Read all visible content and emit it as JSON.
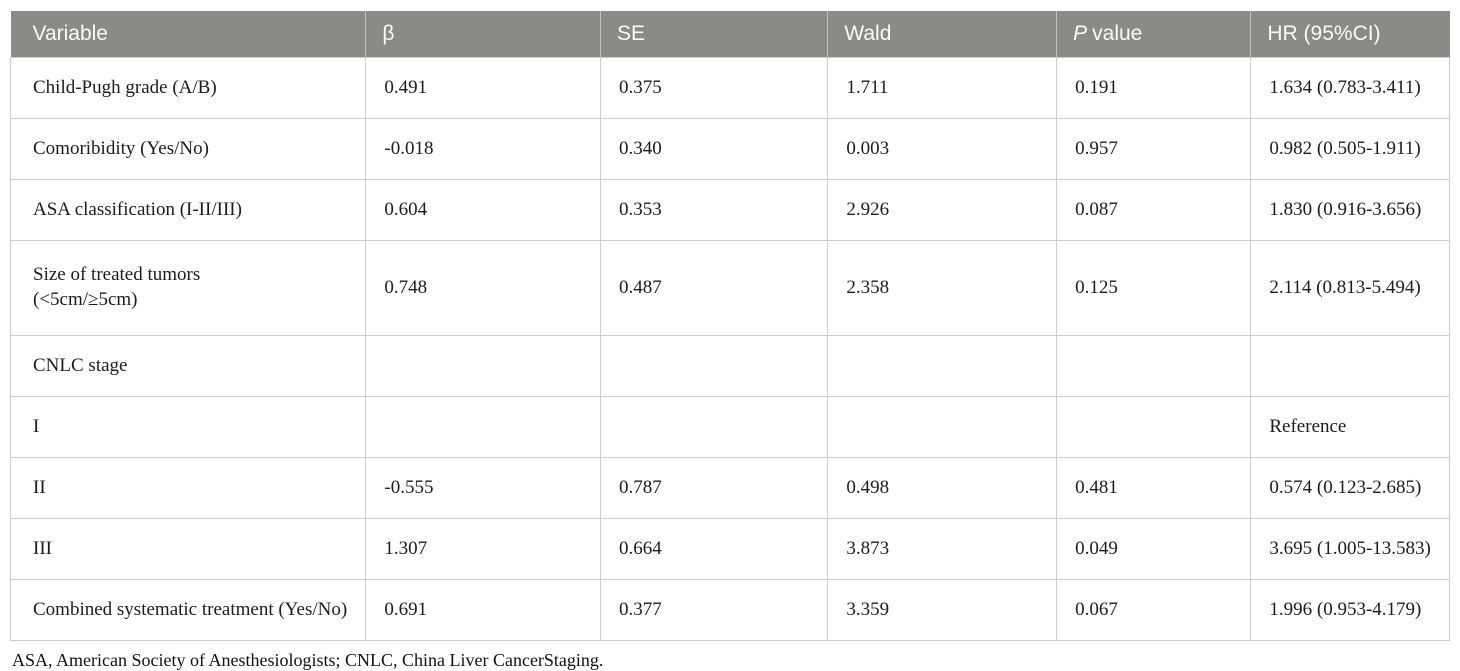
{
  "table": {
    "columns": {
      "variable": "Variable",
      "beta": "β",
      "se": "SE",
      "wald": "Wald",
      "p_italic": "P",
      "p_rest": "value",
      "hr": "HR (95%CI)"
    },
    "rows": [
      {
        "variable": "Child-Pugh grade (A/B)",
        "beta": "0.491",
        "se": "0.375",
        "wald": "1.711",
        "p": "0.191",
        "hr": "1.634 (0.783-3.411)"
      },
      {
        "variable": "Comoribidity (Yes/No)",
        "beta": "-0.018",
        "se": "0.340",
        "wald": "0.003",
        "p": "0.957",
        "hr": "0.982 (0.505-1.911)"
      },
      {
        "variable": "ASA classification (I-II/III)",
        "beta": "0.604",
        "se": "0.353",
        "wald": "2.926",
        "p": "0.087",
        "hr": "1.830 (0.916-3.656)"
      },
      {
        "variable": "Size of treated tumors\n(<5cm/≥5cm)",
        "beta": "0.748",
        "se": "0.487",
        "wald": "2.358",
        "p": "0.125",
        "hr": "2.114 (0.813-5.494)"
      },
      {
        "variable": "CNLC stage",
        "beta": "",
        "se": "",
        "wald": "",
        "p": "",
        "hr": ""
      },
      {
        "variable": "I",
        "beta": "",
        "se": "",
        "wald": "",
        "p": "",
        "hr": "Reference"
      },
      {
        "variable": "II",
        "beta": "-0.555",
        "se": "0.787",
        "wald": "0.498",
        "p": "0.481",
        "hr": "0.574 (0.123-2.685)"
      },
      {
        "variable": "III",
        "beta": "1.307",
        "se": "0.664",
        "wald": "3.873",
        "p": "0.049",
        "hr": "3.695 (1.005-13.583)"
      },
      {
        "variable": "Combined systematic treatment (Yes/No)",
        "beta": "0.691",
        "se": "0.377",
        "wald": "3.359",
        "p": "0.067",
        "hr": "1.996 (0.953-4.179)"
      }
    ],
    "footnote": "ASA, American Society of Anesthesiologists; CNLC, China Liver CancerStaging."
  },
  "colors": {
    "header_bg": "#8a8a88",
    "header_text": "#fafaf8",
    "grid_border": "#cccccc",
    "body_text": "#1c1c1c"
  }
}
